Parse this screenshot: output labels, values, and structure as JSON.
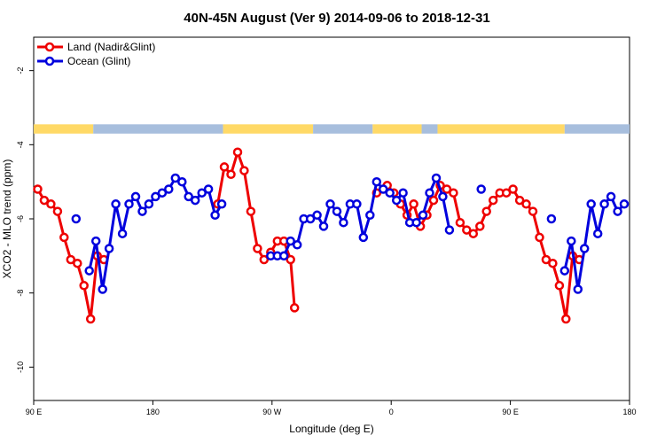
{
  "chart_data": {
    "type": "line",
    "title": "40N-45N August (Ver 9)   2014-09-06 to 2018-12-31",
    "xlabel": "Longitude (deg E)",
    "ylabel": "XCO2 - MLO trend (ppm)",
    "xlim": [
      90,
      540
    ],
    "ylim": [
      -10.9,
      -1.1
    ],
    "x_tick_positions": [
      90,
      180,
      270,
      360,
      450,
      540
    ],
    "x_tick_labels": [
      "90 E",
      "180",
      "90 W",
      "0",
      "90 E",
      "180"
    ],
    "y_ticks": [
      -10,
      -8,
      -6,
      -4,
      -2
    ],
    "grid": false,
    "legend_position": "top-left",
    "land_ocean_band": {
      "y_range": [
        -3.7,
        -3.45
      ],
      "colors": {
        "land": "#ffd966",
        "ocean": "#a7bedd"
      },
      "segments": [
        {
          "type": "land",
          "x": [
            90,
            135
          ]
        },
        {
          "type": "ocean",
          "x": [
            135,
            233
          ]
        },
        {
          "type": "land",
          "x": [
            233,
            301
          ]
        },
        {
          "type": "ocean",
          "x": [
            301,
            346
          ]
        },
        {
          "type": "land",
          "x": [
            346,
            383
          ]
        },
        {
          "type": "ocean",
          "x": [
            383,
            395
          ]
        },
        {
          "type": "land",
          "x": [
            395,
            491
          ]
        },
        {
          "type": "ocean",
          "x": [
            491,
            540
          ]
        }
      ]
    },
    "series": [
      {
        "name": "Land (Nadir&Glint)",
        "color": "#ee0000",
        "segments": [
          [
            [
              93,
              -5.2
            ],
            [
              98,
              -5.5
            ],
            [
              103,
              -5.6
            ],
            [
              108,
              -5.8
            ],
            [
              113,
              -6.5
            ],
            [
              118,
              -7.1
            ],
            [
              123,
              -7.2
            ],
            [
              128,
              -7.8
            ],
            [
              133,
              -8.7
            ],
            [
              138,
              -7.0
            ],
            [
              143,
              -7.1
            ]
          ],
          [
            [
              229,
              -5.6
            ],
            [
              234,
              -4.6
            ],
            [
              239,
              -4.8
            ],
            [
              244,
              -4.2
            ],
            [
              249,
              -4.7
            ],
            [
              254,
              -5.8
            ],
            [
              259,
              -6.8
            ],
            [
              264,
              -7.1
            ],
            [
              269,
              -6.9
            ],
            [
              274,
              -6.6
            ],
            [
              279,
              -6.6
            ],
            [
              284,
              -7.1
            ],
            [
              287,
              -8.4
            ]
          ],
          [
            [
              349,
              -5.3
            ],
            [
              357,
              -5.1
            ],
            [
              362,
              -5.3
            ],
            [
              367,
              -5.6
            ],
            [
              372,
              -5.9
            ],
            [
              377,
              -5.6
            ],
            [
              382,
              -6.2
            ],
            [
              387,
              -5.9
            ],
            [
              392,
              -5.5
            ],
            [
              397,
              -5.1
            ],
            [
              402,
              -5.2
            ],
            [
              407,
              -5.3
            ],
            [
              412,
              -6.1
            ],
            [
              417,
              -6.3
            ],
            [
              422,
              -6.4
            ],
            [
              427,
              -6.2
            ],
            [
              432,
              -5.8
            ],
            [
              437,
              -5.5
            ],
            [
              442,
              -5.3
            ],
            [
              447,
              -5.3
            ],
            [
              452,
              -5.2
            ],
            [
              457,
              -5.5
            ],
            [
              462,
              -5.6
            ],
            [
              467,
              -5.8
            ],
            [
              472,
              -6.5
            ],
            [
              477,
              -7.1
            ],
            [
              482,
              -7.2
            ],
            [
              487,
              -7.8
            ],
            [
              492,
              -8.7
            ],
            [
              497,
              -7.0
            ],
            [
              502,
              -7.1
            ]
          ]
        ]
      },
      {
        "name": "Ocean (Glint)",
        "color": "#0000dd",
        "segments": [
          [
            [
              122,
              -6.0
            ]
          ],
          [
            [
              132,
              -7.4
            ],
            [
              137,
              -6.6
            ],
            [
              142,
              -7.9
            ],
            [
              147,
              -6.8
            ],
            [
              152,
              -5.6
            ],
            [
              157,
              -6.4
            ],
            [
              162,
              -5.6
            ],
            [
              167,
              -5.4
            ],
            [
              172,
              -5.8
            ],
            [
              177,
              -5.6
            ],
            [
              182,
              -5.4
            ],
            [
              187,
              -5.3
            ],
            [
              192,
              -5.2
            ],
            [
              197,
              -4.9
            ],
            [
              202,
              -5.0
            ],
            [
              207,
              -5.4
            ],
            [
              212,
              -5.5
            ],
            [
              217,
              -5.3
            ],
            [
              222,
              -5.2
            ],
            [
              227,
              -5.9
            ],
            [
              232,
              -5.6
            ]
          ],
          [
            [
              269,
              -7.0
            ],
            [
              274,
              -7.0
            ],
            [
              279,
              -7.0
            ],
            [
              284,
              -6.6
            ],
            [
              289,
              -6.7
            ],
            [
              294,
              -6.0
            ],
            [
              299,
              -6.0
            ],
            [
              304,
              -5.9
            ],
            [
              309,
              -6.2
            ],
            [
              314,
              -5.6
            ],
            [
              319,
              -5.8
            ],
            [
              324,
              -6.1
            ],
            [
              329,
              -5.6
            ],
            [
              334,
              -5.6
            ],
            [
              339,
              -6.5
            ],
            [
              344,
              -5.9
            ],
            [
              349,
              -5.0
            ],
            [
              354,
              -5.2
            ],
            [
              359,
              -5.3
            ],
            [
              364,
              -5.5
            ],
            [
              369,
              -5.3
            ],
            [
              374,
              -6.1
            ],
            [
              379,
              -6.1
            ],
            [
              384,
              -5.9
            ],
            [
              389,
              -5.3
            ],
            [
              394,
              -4.9
            ],
            [
              399,
              -5.4
            ],
            [
              404,
              -6.3
            ]
          ],
          [
            [
              428,
              -5.2
            ]
          ],
          [
            [
              481,
              -6.0
            ]
          ],
          [
            [
              491,
              -7.4
            ],
            [
              496,
              -6.6
            ],
            [
              501,
              -7.9
            ],
            [
              506,
              -6.8
            ],
            [
              511,
              -5.6
            ],
            [
              516,
              -6.4
            ],
            [
              521,
              -5.6
            ],
            [
              526,
              -5.4
            ],
            [
              531,
              -5.8
            ],
            [
              536,
              -5.6
            ]
          ]
        ]
      }
    ]
  }
}
